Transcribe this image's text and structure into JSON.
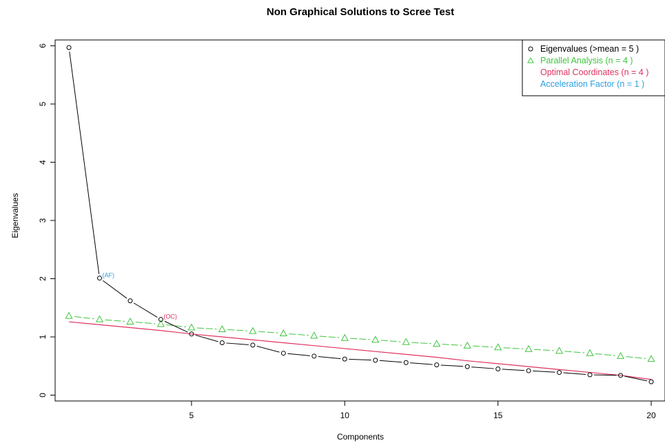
{
  "chart_data": {
    "type": "line",
    "title": "Non Graphical Solutions to Scree Test",
    "xlabel": "Components",
    "ylabel": "Eigenvalues",
    "xlim": [
      0.55,
      20.45
    ],
    "ylim": [
      -0.1,
      6.1
    ],
    "x_ticks": [
      5,
      10,
      15,
      20
    ],
    "y_ticks": [
      0,
      1,
      2,
      3,
      4,
      5,
      6
    ],
    "x": [
      1,
      2,
      3,
      4,
      5,
      6,
      7,
      8,
      9,
      10,
      11,
      12,
      13,
      14,
      15,
      16,
      17,
      18,
      19,
      20
    ],
    "series": [
      {
        "name": "Eigenvalues (>mean  =  5 )",
        "kind": "line-points",
        "marker": "circle",
        "color": "#000000",
        "values": [
          5.97,
          2.01,
          1.62,
          1.3,
          1.05,
          0.9,
          0.86,
          0.72,
          0.67,
          0.62,
          0.6,
          0.56,
          0.52,
          0.49,
          0.45,
          0.42,
          0.39,
          0.35,
          0.34,
          0.23
        ]
      },
      {
        "name": "Parallel Analysis (n =  4 )",
        "kind": "dashed-points",
        "marker": "triangle",
        "color": "#3dc43d",
        "values": [
          1.36,
          1.3,
          1.26,
          1.22,
          1.16,
          1.13,
          1.1,
          1.06,
          1.02,
          0.98,
          0.95,
          0.91,
          0.88,
          0.85,
          0.82,
          0.79,
          0.76,
          0.72,
          0.67,
          0.62
        ]
      },
      {
        "name": "Optimal Coordinates (n =  4 )",
        "kind": "line",
        "color": "#e0325f",
        "values": [
          1.26,
          1.21,
          1.16,
          1.11,
          1.05,
          1.0,
          0.95,
          0.9,
          0.85,
          0.8,
          0.75,
          0.7,
          0.65,
          0.59,
          0.54,
          0.49,
          0.44,
          0.39,
          0.34,
          0.27
        ]
      }
    ],
    "acceleration_factor_series": {
      "name": "Acceleration Factor (n =  1 )",
      "color": "#2b9fe0"
    },
    "annotations": [
      {
        "text": "(AF)",
        "x": 2,
        "y": 2.01,
        "color": "#2b9fe0"
      },
      {
        "text": "(OC)",
        "x": 4,
        "y": 1.3,
        "color": "#e0325f"
      }
    ],
    "legend_position": "top-right",
    "grid": false
  }
}
